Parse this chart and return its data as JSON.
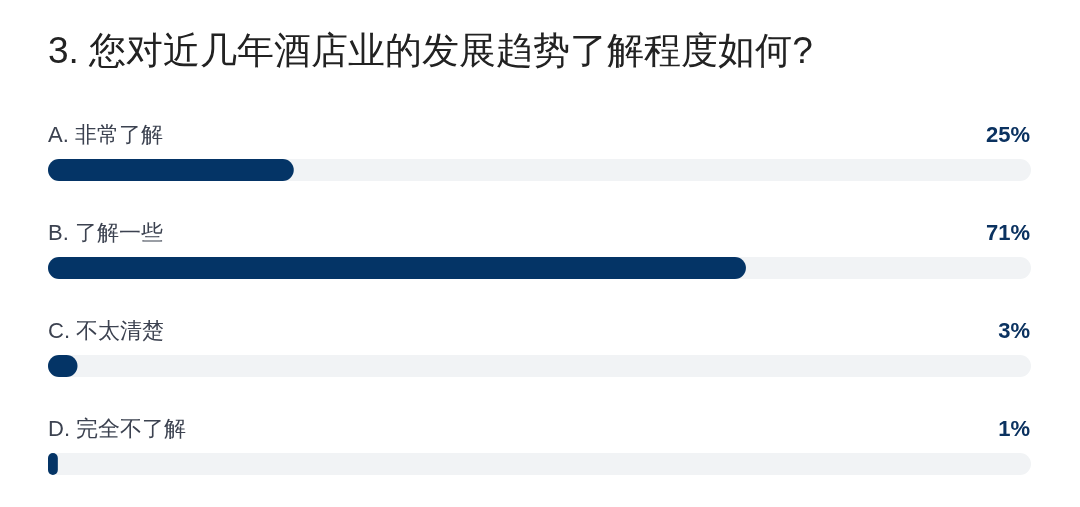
{
  "chart_data": {
    "type": "bar",
    "orientation": "horizontal",
    "title": "3. 您对近几年酒店业的发展趋势了解程度如何?",
    "categories": [
      "A. 非常了解",
      "B. 了解一些",
      "C. 不太清楚",
      "D. 完全不了解"
    ],
    "values": [
      25,
      71,
      3,
      1
    ],
    "value_labels": [
      "25%",
      "71%",
      "3%",
      "1%"
    ],
    "color": "#043466",
    "xlim": [
      0,
      100
    ],
    "tick_labels": "y"
  }
}
